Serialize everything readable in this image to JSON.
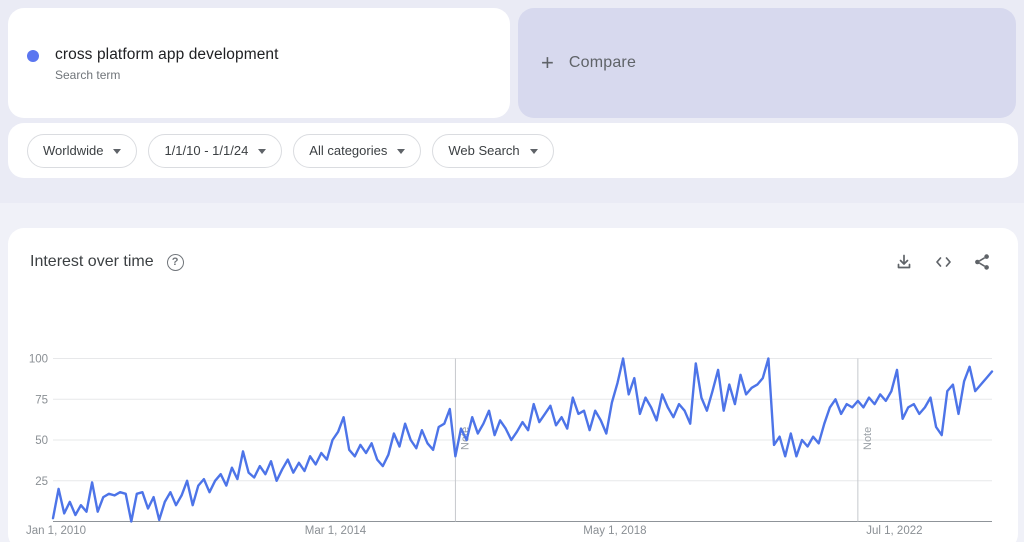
{
  "term_card": {
    "term": "cross platform app development",
    "subtitle": "Search term",
    "dot_color": "#5b76f0"
  },
  "compare_card": {
    "plus": "+",
    "label": "Compare",
    "bg_color": "#d7d9ee"
  },
  "filter_bar": {
    "filters": [
      {
        "label": "Worldwide"
      },
      {
        "label": "1/1/10 - 1/1/24"
      },
      {
        "label": "All categories"
      },
      {
        "label": "Web Search"
      }
    ]
  },
  "chart_card": {
    "title": "Interest over time",
    "help_icon": "question-mark-circle-icon",
    "actions": [
      {
        "icon": "download-icon"
      },
      {
        "icon": "embed-code-icon"
      },
      {
        "icon": "share-icon"
      }
    ]
  },
  "chart_data": {
    "type": "line",
    "title": "Interest over time",
    "series_name": "cross platform app development",
    "x_start": "Jan 2010",
    "x_end": "Jan 2024",
    "x_interval": "monthly",
    "xtick_labels": [
      "Jan 1, 2010",
      "Mar 1, 2014",
      "May 1, 2018",
      "Jul 1, 2022"
    ],
    "xtick_month_indices": [
      0,
      50,
      100,
      150
    ],
    "ytick_labels": [
      "100",
      "75",
      "50",
      "25"
    ],
    "ylim": [
      0,
      100
    ],
    "grid": true,
    "legend_position": "none",
    "line_color": "#4d74e8",
    "notes": [
      {
        "month_index": 72,
        "label": "Note"
      },
      {
        "month_index": 144,
        "label": "Note"
      }
    ],
    "values": [
      2,
      20,
      5,
      12,
      4,
      10,
      6,
      24,
      6,
      15,
      17,
      16,
      18,
      17,
      0,
      17,
      18,
      8,
      15,
      1,
      12,
      18,
      10,
      16,
      25,
      10,
      22,
      26,
      18,
      25,
      29,
      22,
      33,
      26,
      43,
      30,
      27,
      34,
      29,
      37,
      25,
      32,
      38,
      30,
      36,
      31,
      40,
      35,
      42,
      38,
      50,
      55,
      64,
      44,
      40,
      47,
      42,
      48,
      38,
      34,
      41,
      54,
      46,
      60,
      50,
      45,
      56,
      48,
      44,
      58,
      60,
      69,
      40,
      57,
      50,
      64,
      54,
      60,
      68,
      53,
      62,
      57,
      50,
      55,
      61,
      56,
      72,
      61,
      66,
      71,
      59,
      64,
      57,
      76,
      66,
      68,
      56,
      68,
      62,
      54,
      73,
      85,
      100,
      78,
      88,
      66,
      76,
      70,
      62,
      78,
      70,
      64,
      72,
      68,
      60,
      97,
      76,
      68,
      80,
      93,
      68,
      84,
      72,
      90,
      78,
      82,
      84,
      88,
      100,
      47,
      52,
      40,
      54,
      40,
      50,
      46,
      52,
      48,
      60,
      70,
      75,
      66,
      72,
      70,
      74,
      70,
      76,
      72,
      78,
      74,
      80,
      93,
      63,
      70,
      72,
      66,
      70,
      76,
      58,
      53,
      80,
      84,
      66,
      86,
      95,
      80,
      84,
      88,
      92
    ]
  }
}
